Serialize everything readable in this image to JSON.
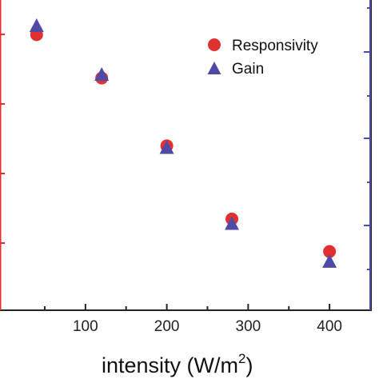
{
  "chart_data": {
    "type": "scatter",
    "x": [
      40,
      120,
      200,
      280,
      400
    ],
    "xlim": [
      -5,
      450
    ],
    "x_ticks": [
      100,
      200,
      300,
      400
    ],
    "x_tick_labels": [
      "100",
      "200",
      "300",
      "400"
    ],
    "xlabel_main": "intensity (W/m",
    "xlabel_sup": "2",
    "xlabel_close": ")",
    "series": [
      {
        "name": "Responsivity",
        "marker": "circle",
        "color": "#e03030",
        "axis": "left",
        "values": [
          0.94,
          0.78,
          0.53,
          0.26,
          0.14
        ]
      },
      {
        "name": "Gain",
        "marker": "triangle",
        "color": "#4f4aa6",
        "axis": "right",
        "values": [
          0.97,
          0.79,
          0.52,
          0.24,
          0.1
        ]
      }
    ],
    "y_normalized_range": [
      0,
      1
    ],
    "left_axis_color": "#e03030",
    "right_axis_color": "#4f4aa6",
    "legend_position": "top-right",
    "grid": false
  }
}
